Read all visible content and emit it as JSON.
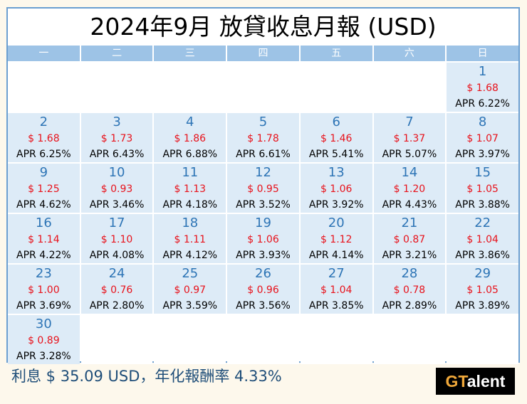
{
  "title": "2024年9月 放貸收息月報 (USD)",
  "weekdays": [
    "一",
    "二",
    "三",
    "四",
    "五",
    "六",
    "日"
  ],
  "cells": [
    {},
    {},
    {},
    {},
    {},
    {},
    {
      "day": "1",
      "amount": "$ 1.68",
      "apr": "APR 6.22%"
    },
    {
      "day": "2",
      "amount": "$ 1.68",
      "apr": "APR 6.25%"
    },
    {
      "day": "3",
      "amount": "$ 1.73",
      "apr": "APR 6.43%"
    },
    {
      "day": "4",
      "amount": "$ 1.86",
      "apr": "APR 6.88%"
    },
    {
      "day": "5",
      "amount": "$ 1.78",
      "apr": "APR 6.61%"
    },
    {
      "day": "6",
      "amount": "$ 1.46",
      "apr": "APR 5.41%"
    },
    {
      "day": "7",
      "amount": "$ 1.37",
      "apr": "APR 5.07%"
    },
    {
      "day": "8",
      "amount": "$ 1.07",
      "apr": "APR 3.97%"
    },
    {
      "day": "9",
      "amount": "$ 1.25",
      "apr": "APR 4.62%"
    },
    {
      "day": "10",
      "amount": "$ 0.93",
      "apr": "APR 3.46%"
    },
    {
      "day": "11",
      "amount": "$ 1.13",
      "apr": "APR 4.18%"
    },
    {
      "day": "12",
      "amount": "$ 0.95",
      "apr": "APR 3.52%"
    },
    {
      "day": "13",
      "amount": "$ 1.06",
      "apr": "APR 3.92%"
    },
    {
      "day": "14",
      "amount": "$ 1.20",
      "apr": "APR 4.43%"
    },
    {
      "day": "15",
      "amount": "$ 1.05",
      "apr": "APR 3.88%"
    },
    {
      "day": "16",
      "amount": "$ 1.14",
      "apr": "APR 4.22%"
    },
    {
      "day": "17",
      "amount": "$ 1.10",
      "apr": "APR 4.08%"
    },
    {
      "day": "18",
      "amount": "$ 1.11",
      "apr": "APR 4.12%"
    },
    {
      "day": "19",
      "amount": "$ 1.06",
      "apr": "APR 3.93%"
    },
    {
      "day": "20",
      "amount": "$ 1.12",
      "apr": "APR 4.14%"
    },
    {
      "day": "21",
      "amount": "$ 0.87",
      "apr": "APR 3.21%"
    },
    {
      "day": "22",
      "amount": "$ 1.04",
      "apr": "APR 3.86%"
    },
    {
      "day": "23",
      "amount": "$ 1.00",
      "apr": "APR 3.69%"
    },
    {
      "day": "24",
      "amount": "$ 0.76",
      "apr": "APR 2.80%"
    },
    {
      "day": "25",
      "amount": "$ 0.97",
      "apr": "APR 3.59%"
    },
    {
      "day": "26",
      "amount": "$ 0.96",
      "apr": "APR 3.56%"
    },
    {
      "day": "27",
      "amount": "$ 1.04",
      "apr": "APR 3.85%"
    },
    {
      "day": "28",
      "amount": "$ 0.78",
      "apr": "APR 2.89%"
    },
    {
      "day": "29",
      "amount": "$ 1.05",
      "apr": "APR 3.89%"
    },
    {
      "day": "30",
      "amount": "$ 0.89",
      "apr": "APR 3.28%"
    },
    {},
    {},
    {},
    {},
    {},
    {}
  ],
  "summary": "利息 $ 35.09 USD，年化報酬率 4.33%",
  "logo": {
    "g": "GT",
    "rest": "alent"
  },
  "colors": {
    "header_bg": "#9dc3e6",
    "cell_bg": "#ddebf7",
    "day_color": "#2e75b6",
    "amount_color": "#e8121b",
    "summary_color": "#1f4e79",
    "logo_accent": "#f0a83a"
  }
}
